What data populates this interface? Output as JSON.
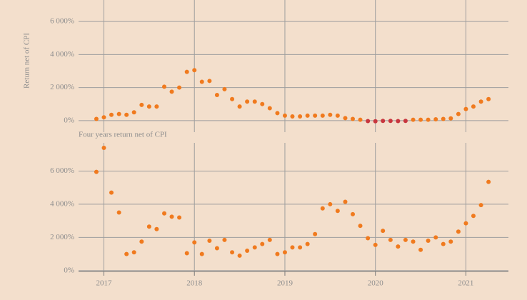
{
  "chart_data": [
    {
      "type": "scatter",
      "y_label": "Return net of CPI",
      "x": [
        2016.917,
        2017,
        2017.083,
        2017.167,
        2017.25,
        2017.333,
        2017.417,
        2017.5,
        2017.583,
        2017.667,
        2017.75,
        2017.833,
        2017.917,
        2018,
        2018.083,
        2018.167,
        2018.25,
        2018.333,
        2018.417,
        2018.5,
        2018.583,
        2018.667,
        2018.75,
        2018.833,
        2018.917,
        2019,
        2019.083,
        2019.167,
        2019.25,
        2019.333,
        2019.417,
        2019.5,
        2019.583,
        2019.667,
        2019.75,
        2019.833,
        2019.917,
        2020,
        2020.083,
        2020.167,
        2020.25,
        2020.333,
        2020.417,
        2020.5,
        2020.583,
        2020.667,
        2020.75,
        2020.833,
        2020.917,
        2021,
        2021.083,
        2021.167,
        2021.25
      ],
      "values": [
        100,
        200,
        350,
        400,
        350,
        500,
        950,
        850,
        850,
        2050,
        1750,
        2000,
        2950,
        3050,
        2350,
        2400,
        1550,
        1900,
        1300,
        850,
        1150,
        1150,
        1000,
        750,
        450,
        300,
        250,
        250,
        300,
        300,
        300,
        350,
        300,
        150,
        100,
        50,
        -30,
        -40,
        -20,
        -20,
        -30,
        -20,
        50,
        50,
        50,
        80,
        100,
        130,
        400,
        700,
        850,
        1150,
        1300
      ],
      "color": "#f07a1e",
      "negative_color": "#c8363e",
      "xlim": [
        2016.72,
        2021.47
      ],
      "xticks": [
        2017,
        2018,
        2019,
        2020,
        2021
      ],
      "show_xtick_labels": false,
      "ylim": [
        -700,
        7300
      ],
      "yticks": [
        {
          "value": 0,
          "label": "0%"
        },
        {
          "value": 2000,
          "label": "2 000%"
        },
        {
          "value": 4000,
          "label": "4 000%"
        },
        {
          "value": 6000,
          "label": "6 000%"
        }
      ],
      "grid": true
    },
    {
      "type": "scatter",
      "title": "Four years return net of CPI",
      "x": [
        2016.917,
        2017,
        2017.083,
        2017.167,
        2017.25,
        2017.333,
        2017.417,
        2017.5,
        2017.583,
        2017.667,
        2017.75,
        2017.833,
        2017.917,
        2018,
        2018.083,
        2018.167,
        2018.25,
        2018.333,
        2018.417,
        2018.5,
        2018.583,
        2018.667,
        2018.75,
        2018.833,
        2018.917,
        2019,
        2019.083,
        2019.167,
        2019.25,
        2019.333,
        2019.417,
        2019.5,
        2019.583,
        2019.667,
        2019.75,
        2019.833,
        2019.917,
        2020,
        2020.083,
        2020.167,
        2020.25,
        2020.333,
        2020.417,
        2020.5,
        2020.583,
        2020.667,
        2020.75,
        2020.833,
        2020.917,
        2021,
        2021.083,
        2021.167,
        2021.25
      ],
      "values": [
        5950,
        7400,
        4700,
        3500,
        1000,
        1100,
        1750,
        2650,
        2500,
        3450,
        3250,
        3200,
        1050,
        1700,
        1000,
        1800,
        1350,
        1850,
        1100,
        900,
        1200,
        1400,
        1600,
        1850,
        1000,
        1100,
        1400,
        1400,
        1600,
        2200,
        3750,
        4000,
        3600,
        4150,
        3400,
        2700,
        1950,
        1550,
        2400,
        1850,
        1450,
        1850,
        1750,
        1250,
        1800,
        2000,
        1600,
        1750,
        2350,
        2850,
        3300,
        3950,
        5350
      ],
      "color": "#f07a1e",
      "xlim": [
        2016.72,
        2021.47
      ],
      "xticks": [
        2017,
        2018,
        2019,
        2020,
        2021
      ],
      "show_xtick_labels": true,
      "ylim": [
        -50,
        7700
      ],
      "yticks": [
        {
          "value": 0,
          "label": "0%"
        },
        {
          "value": 2000,
          "label": "2 000%"
        },
        {
          "value": 4000,
          "label": "4 000%"
        },
        {
          "value": 6000,
          "label": "6 000%"
        }
      ],
      "grid": true
    }
  ]
}
